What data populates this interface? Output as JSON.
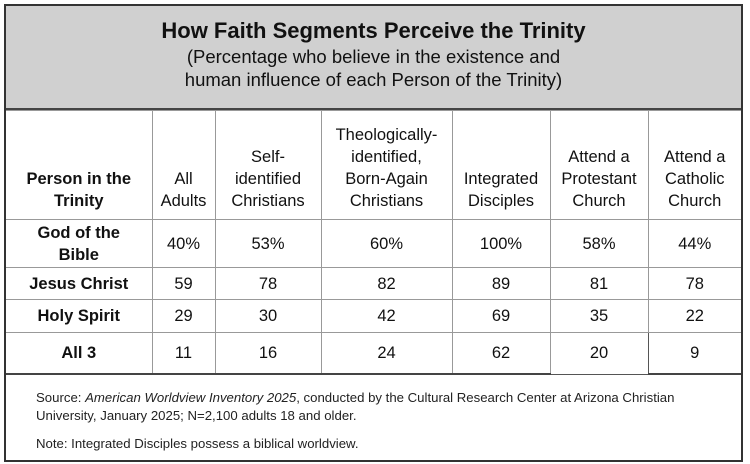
{
  "header": {
    "title": "How Faith Segments Perceive the Trinity",
    "subtitle_line1": "(Percentage who believe in the existence and",
    "subtitle_line2": "human influence of each Person of the Trinity)"
  },
  "table": {
    "columns": [
      "Person in the Trinity",
      "All Adults",
      "Self-identified Christians",
      "Theologically-identified, Born-Again Christians",
      "Integrated Disciples",
      "Attend a Protestant Church",
      "Attend a Catholic Church"
    ],
    "column_lines": [
      [
        "Person in the",
        "Trinity"
      ],
      [
        "All",
        "Adults"
      ],
      [
        "Self-",
        "identified",
        "Christians"
      ],
      [
        "Theologically-",
        "identified,",
        "Born-Again",
        "Christians"
      ],
      [
        "Integrated",
        "Disciples"
      ],
      [
        "Attend a",
        "Protestant",
        "Church"
      ],
      [
        "Attend a",
        "Catholic",
        "Church"
      ]
    ],
    "rows": [
      {
        "label": "God of the Bible",
        "label_lines": [
          "God of the",
          "Bible"
        ],
        "values": [
          "40%",
          "53%",
          "60%",
          "100%",
          "58%",
          "44%"
        ]
      },
      {
        "label": "Jesus Christ",
        "values": [
          "59",
          "78",
          "82",
          "89",
          "81",
          "78"
        ]
      },
      {
        "label": "Holy Spirit",
        "values": [
          "29",
          "30",
          "42",
          "69",
          "35",
          "22"
        ]
      },
      {
        "label": "All 3",
        "values": [
          "11",
          "16",
          "24",
          "62",
          "20",
          "9"
        ]
      }
    ]
  },
  "footer": {
    "source_label": "Source: ",
    "source_title": "American Worldview Inventory 2025",
    "source_rest": ", conducted by the Cultural Research Center at Arizona Christian University, January 2025; N=2,100 adults 18 and older.",
    "note": "Note: Integrated Disciples possess a biblical worldview."
  }
}
